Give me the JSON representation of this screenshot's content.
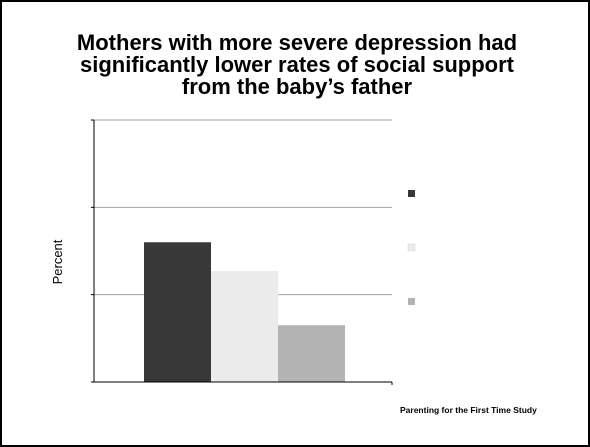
{
  "slide": {
    "title_lines": [
      "Mothers with more severe depression had",
      "significantly lower rates of social support",
      "from the baby’s father"
    ],
    "source": "Parenting for the First Time Study"
  },
  "chart_data": {
    "type": "bar",
    "title": "Mothers with more severe depression had significantly lower rates of social support from the baby’s father",
    "ylabel": "Percent",
    "xlabel": "",
    "categories": [
      ""
    ],
    "ylim": [
      0,
      3
    ],
    "grid": true,
    "legend_position": "right",
    "series": [
      {
        "values": [
          1.6
        ],
        "color": "#383838"
      },
      {
        "values": [
          1.27
        ],
        "color": "#ebebeb"
      },
      {
        "values": [
          0.65
        ],
        "color": "#b3b3b3"
      }
    ]
  }
}
